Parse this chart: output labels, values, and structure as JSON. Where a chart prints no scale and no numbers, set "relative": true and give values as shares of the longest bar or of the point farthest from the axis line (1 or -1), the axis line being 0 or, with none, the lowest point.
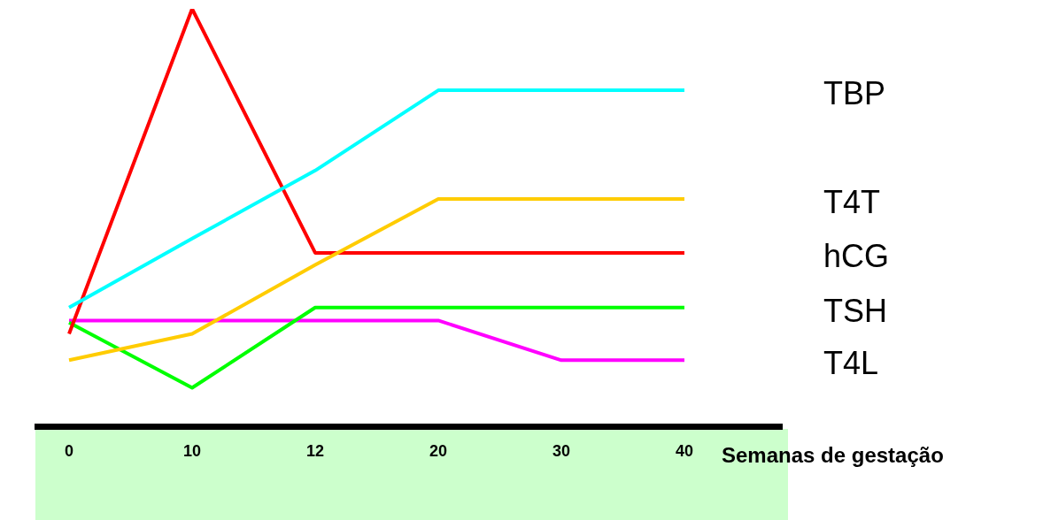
{
  "chart_data": {
    "type": "line",
    "relative": true,
    "xlabel": "Semanas de gestação",
    "categories": [
      "0",
      "10",
      "12",
      "20",
      "30",
      "40"
    ],
    "legend": false,
    "grid": false,
    "marker": "none",
    "series": [
      {
        "name": "TBP",
        "color": "#00ffff",
        "values": [
          0.285,
          0.45,
          0.613,
          0.805,
          0.805,
          0.805
        ]
      },
      {
        "name": "T4T",
        "color": "#ffcc00",
        "values": [
          0.159,
          0.222,
          0.387,
          0.545,
          0.545,
          0.545
        ]
      },
      {
        "name": "hCG",
        "color": "#ff0000",
        "values": [
          0.222,
          1,
          0.416,
          0.416,
          0.416,
          0.416
        ]
      },
      {
        "name": "TSH",
        "color": "#00ff00",
        "values": [
          0.249,
          0.093,
          0.285,
          0.285,
          0.285,
          0.285
        ]
      },
      {
        "name": "T4L",
        "color": "#ff00ff",
        "values": [
          0.254,
          0.254,
          0.254,
          0.254,
          0.159,
          0.159
        ]
      }
    ]
  }
}
